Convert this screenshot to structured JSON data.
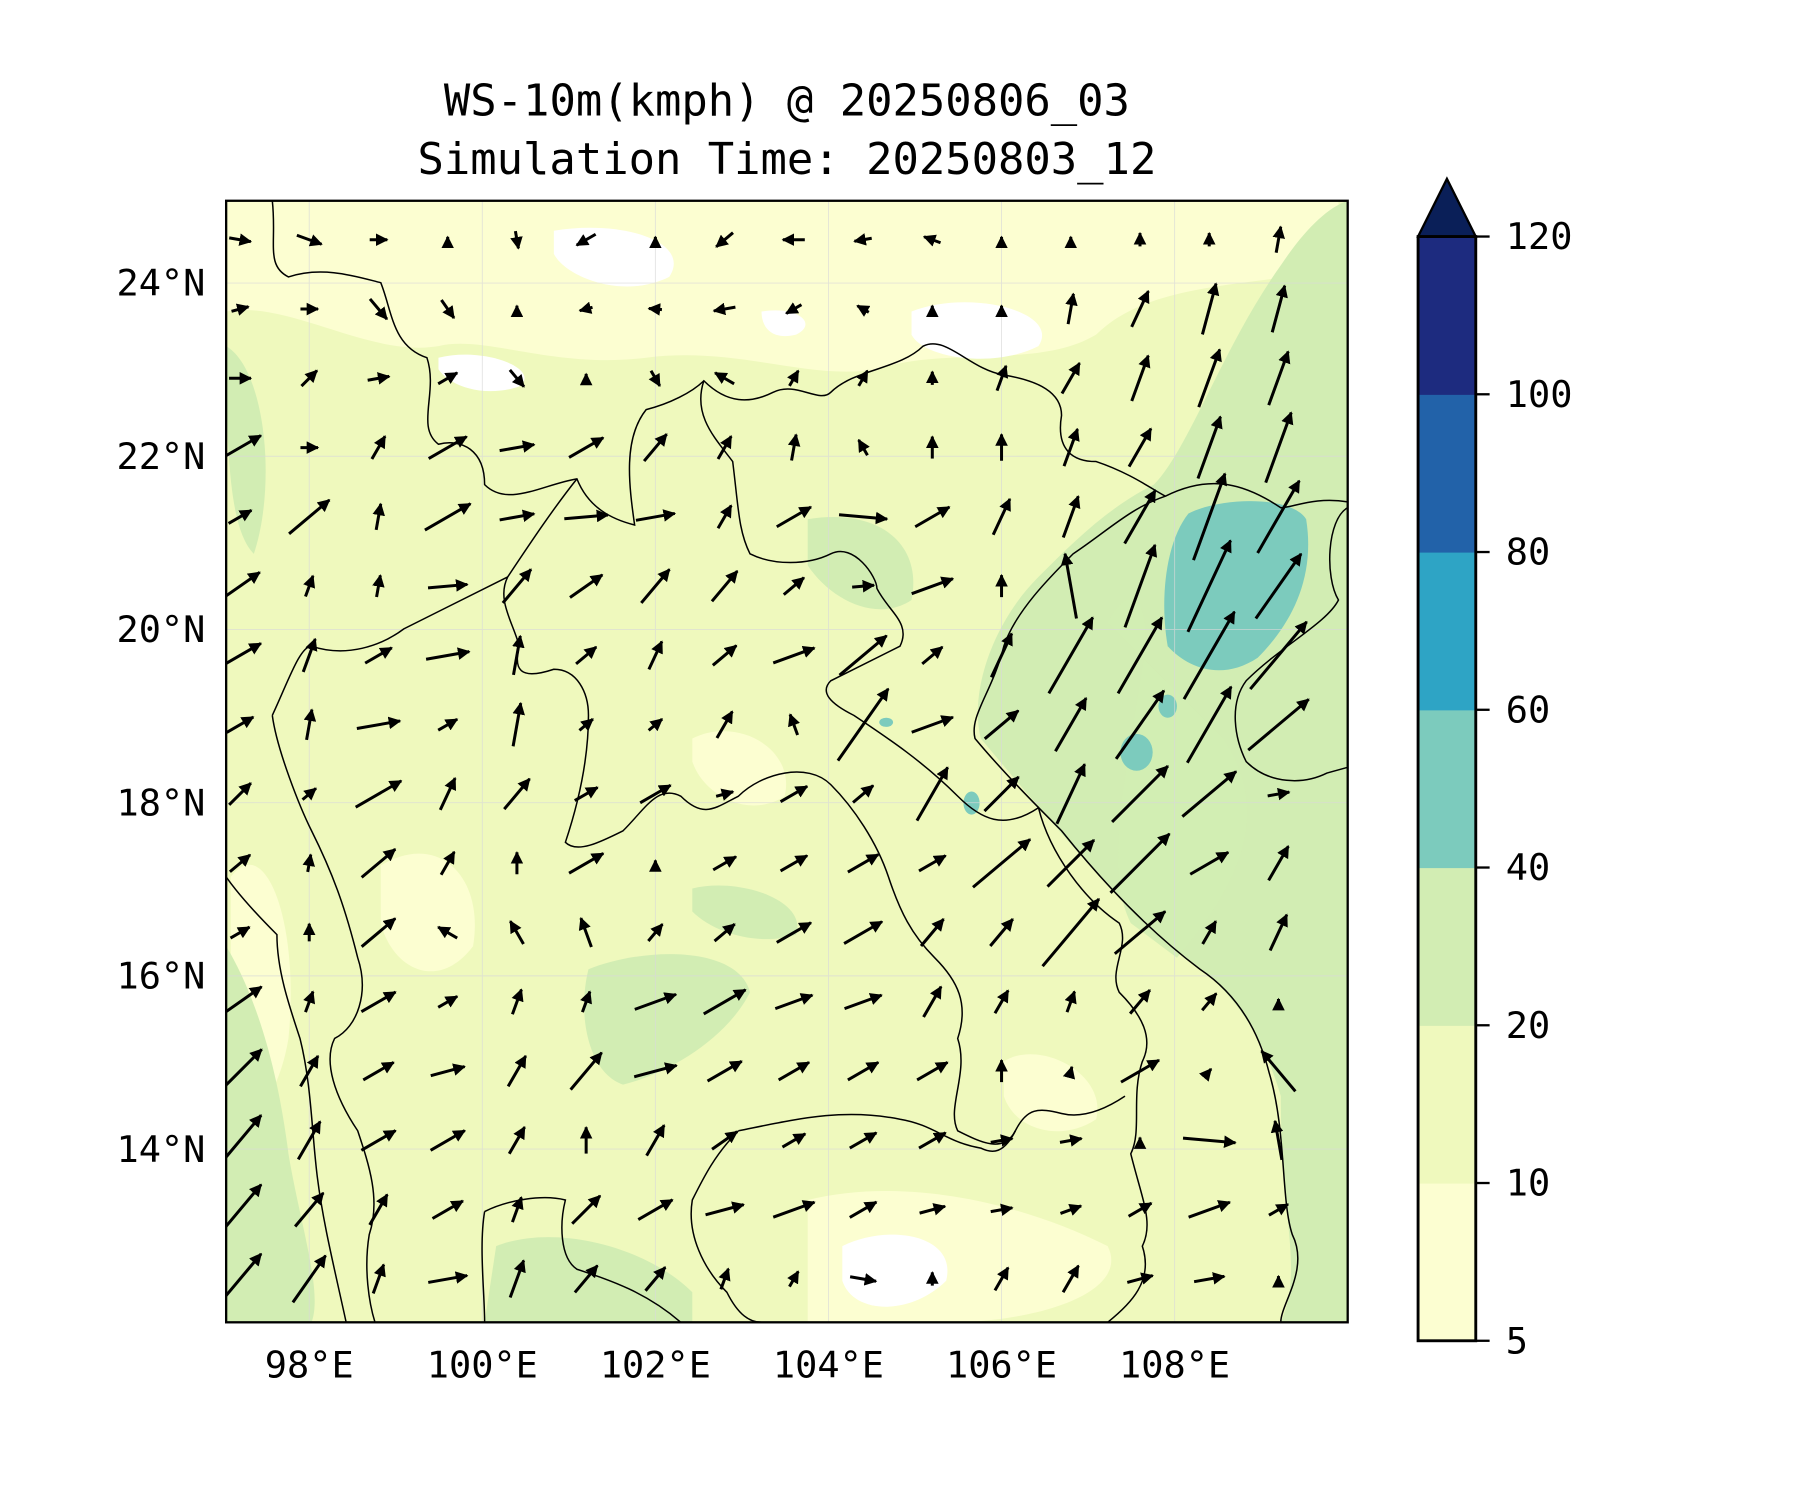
{
  "chart_data": {
    "type": "heatmap",
    "title_line1": "WS-10m(kmph) @ 20250806_03",
    "title_line2": "Simulation Time: 20250803_12",
    "variable": "10 m wind speed (kmph) with wind vectors",
    "xlim": [
      97.04,
      110.0
    ],
    "ylim": [
      12.0,
      24.95
    ],
    "x_ticks": [
      98,
      100,
      102,
      104,
      106,
      108
    ],
    "x_tick_labels": [
      "98°E",
      "100°E",
      "102°E",
      "104°E",
      "106°E",
      "108°E"
    ],
    "y_ticks": [
      14,
      16,
      18,
      20,
      22,
      24
    ],
    "y_tick_labels": [
      "14°N",
      "16°N",
      "18°N",
      "20°N",
      "22°N",
      "24°N"
    ],
    "grid": true,
    "colorbar": {
      "levels": [
        5,
        10,
        20,
        40,
        60,
        80,
        100,
        120
      ],
      "tick_labels": [
        "5",
        "10",
        "20",
        "40",
        "60",
        "80",
        "100",
        "120"
      ],
      "colors": [
        "#fcfed1",
        "#eff9bd",
        "#d2edb3",
        "#7ccbbd",
        "#2ea4c5",
        "#2262a9",
        "#1d2b7f"
      ],
      "extend_color": "#0a1f58",
      "extend": "max",
      "placement": "right"
    },
    "wind": {
      "lon_start": 97.2,
      "lon_step": 0.8,
      "lat_start": 24.5,
      "lat_step": -0.8,
      "note": "each cell [direction_toward_deg, speed_kmph]",
      "rows": [
        [
          [
            100,
            10
          ],
          [
            110,
            12
          ],
          [
            90,
            8
          ],
          [
            0,
            2
          ],
          [
            170,
            8
          ],
          [
            240,
            10
          ],
          [
            0,
            2
          ],
          [
            230,
            10
          ],
          [
            270,
            10
          ],
          [
            260,
            8
          ],
          [
            290,
            8
          ],
          [
            0,
            2
          ],
          [
            0,
            2
          ],
          [
            0,
            6
          ],
          [
            0,
            6
          ],
          [
            10,
            12
          ]
        ],
        [
          [
            75,
            8
          ],
          [
            90,
            8
          ],
          [
            140,
            12
          ],
          [
            145,
            10
          ],
          [
            0,
            3
          ],
          [
            255,
            6
          ],
          [
            275,
            6
          ],
          [
            260,
            10
          ],
          [
            240,
            8
          ],
          [
            300,
            6
          ],
          [
            0,
            3
          ],
          [
            0,
            3
          ],
          [
            10,
            14
          ],
          [
            25,
            18
          ],
          [
            15,
            24
          ],
          [
            15,
            22
          ]
        ],
        [
          [
            90,
            10
          ],
          [
            45,
            10
          ],
          [
            80,
            10
          ],
          [
            60,
            10
          ],
          [
            140,
            10
          ],
          [
            0,
            4
          ],
          [
            150,
            8
          ],
          [
            300,
            10
          ],
          [
            30,
            8
          ],
          [
            30,
            8
          ],
          [
            0,
            6
          ],
          [
            20,
            12
          ],
          [
            30,
            16
          ],
          [
            20,
            22
          ],
          [
            20,
            28
          ],
          [
            20,
            26
          ]
        ],
        [
          [
            60,
            22
          ],
          [
            90,
            8
          ],
          [
            30,
            12
          ],
          [
            60,
            20
          ],
          [
            80,
            16
          ],
          [
            60,
            18
          ],
          [
            40,
            16
          ],
          [
            30,
            12
          ],
          [
            10,
            12
          ],
          [
            330,
            8
          ],
          [
            0,
            10
          ],
          [
            0,
            12
          ],
          [
            20,
            18
          ],
          [
            30,
            20
          ],
          [
            20,
            30
          ],
          [
            20,
            34
          ]
        ],
        [
          [
            60,
            12
          ],
          [
            50,
            24
          ],
          [
            10,
            12
          ],
          [
            60,
            24
          ],
          [
            80,
            16
          ],
          [
            85,
            20
          ],
          [
            80,
            18
          ],
          [
            30,
            12
          ],
          [
            60,
            18
          ],
          [
            95,
            22
          ],
          [
            60,
            18
          ],
          [
            25,
            18
          ],
          [
            20,
            20
          ],
          [
            30,
            28
          ],
          [
            20,
            42
          ],
          [
            30,
            38
          ]
        ],
        [
          [
            55,
            22
          ],
          [
            20,
            10
          ],
          [
            10,
            10
          ],
          [
            85,
            18
          ],
          [
            40,
            20
          ],
          [
            55,
            18
          ],
          [
            40,
            20
          ],
          [
            40,
            18
          ],
          [
            50,
            12
          ],
          [
            85,
            10
          ],
          [
            70,
            20
          ],
          [
            0,
            10
          ],
          [
            350,
            30
          ],
          [
            20,
            40
          ],
          [
            25,
            46
          ],
          [
            35,
            36
          ]
        ],
        [
          [
            60,
            22
          ],
          [
            20,
            16
          ],
          [
            60,
            14
          ],
          [
            80,
            20
          ],
          [
            10,
            18
          ],
          [
            50,
            12
          ],
          [
            25,
            14
          ],
          [
            50,
            14
          ],
          [
            70,
            20
          ],
          [
            50,
            28
          ],
          [
            50,
            12
          ],
          [
            25,
            22
          ],
          [
            30,
            40
          ],
          [
            30,
            40
          ],
          [
            30,
            46
          ],
          [
            40,
            40
          ]
        ],
        [
          [
            60,
            14
          ],
          [
            10,
            14
          ],
          [
            80,
            20
          ],
          [
            60,
            10
          ],
          [
            10,
            20
          ],
          [
            50,
            8
          ],
          [
            50,
            8
          ],
          [
            30,
            14
          ],
          [
            340,
            10
          ],
          [
            35,
            40
          ],
          [
            70,
            20
          ],
          [
            50,
            20
          ],
          [
            30,
            28
          ],
          [
            35,
            38
          ],
          [
            30,
            40
          ],
          [
            50,
            36
          ]
        ],
        [
          [
            45,
            14
          ],
          [
            50,
            8
          ],
          [
            60,
            24
          ],
          [
            25,
            16
          ],
          [
            40,
            18
          ],
          [
            60,
            12
          ],
          [
            60,
            16
          ],
          [
            75,
            8
          ],
          [
            60,
            14
          ],
          [
            50,
            12
          ],
          [
            30,
            28
          ],
          [
            45,
            22
          ],
          [
            25,
            30
          ],
          [
            45,
            36
          ],
          [
            50,
            32
          ],
          [
            80,
            10
          ]
        ],
        [
          [
            50,
            12
          ],
          [
            10,
            8
          ],
          [
            50,
            20
          ],
          [
            30,
            12
          ],
          [
            0,
            10
          ],
          [
            60,
            18
          ],
          [
            0,
            2
          ],
          [
            60,
            12
          ],
          [
            60,
            14
          ],
          [
            60,
            16
          ],
          [
            60,
            14
          ],
          [
            50,
            34
          ],
          [
            45,
            30
          ],
          [
            45,
            38
          ],
          [
            60,
            20
          ],
          [
            30,
            18
          ]
        ],
        [
          [
            60,
            10
          ],
          [
            0,
            8
          ],
          [
            50,
            20
          ],
          [
            300,
            10
          ],
          [
            330,
            12
          ],
          [
            340,
            14
          ],
          [
            40,
            10
          ],
          [
            50,
            12
          ],
          [
            60,
            18
          ],
          [
            60,
            20
          ],
          [
            40,
            16
          ],
          [
            40,
            16
          ],
          [
            40,
            40
          ],
          [
            50,
            30
          ],
          [
            30,
            12
          ],
          [
            25,
            18
          ]
        ],
        [
          [
            55,
            24
          ],
          [
            20,
            10
          ],
          [
            60,
            18
          ],
          [
            60,
            10
          ],
          [
            20,
            12
          ],
          [
            20,
            10
          ],
          [
            70,
            20
          ],
          [
            60,
            22
          ],
          [
            70,
            18
          ],
          [
            70,
            18
          ],
          [
            30,
            16
          ],
          [
            30,
            12
          ],
          [
            20,
            10
          ],
          [
            40,
            14
          ],
          [
            40,
            10
          ],
          [
            0,
            2
          ]
        ],
        [
          [
            45,
            28
          ],
          [
            30,
            16
          ],
          [
            60,
            16
          ],
          [
            75,
            16
          ],
          [
            30,
            16
          ],
          [
            40,
            22
          ],
          [
            75,
            20
          ],
          [
            60,
            18
          ],
          [
            60,
            16
          ],
          [
            60,
            16
          ],
          [
            60,
            16
          ],
          [
            0,
            10
          ],
          [
            15,
            4
          ],
          [
            60,
            20
          ],
          [
            40,
            2
          ],
          [
            320,
            24
          ]
        ],
        [
          [
            40,
            30
          ],
          [
            30,
            20
          ],
          [
            60,
            18
          ],
          [
            60,
            18
          ],
          [
            30,
            14
          ],
          [
            0,
            12
          ],
          [
            30,
            16
          ],
          [
            55,
            14
          ],
          [
            60,
            12
          ],
          [
            60,
            14
          ],
          [
            60,
            14
          ],
          [
            80,
            10
          ],
          [
            80,
            10
          ],
          [
            0,
            2
          ],
          [
            95,
            24
          ],
          [
            350,
            18
          ]
        ],
        [
          [
            40,
            30
          ],
          [
            40,
            20
          ],
          [
            30,
            16
          ],
          [
            60,
            16
          ],
          [
            20,
            12
          ],
          [
            45,
            18
          ],
          [
            60,
            18
          ],
          [
            75,
            18
          ],
          [
            70,
            20
          ],
          [
            60,
            14
          ],
          [
            75,
            12
          ],
          [
            80,
            10
          ],
          [
            70,
            10
          ],
          [
            60,
            12
          ],
          [
            70,
            20
          ],
          [
            60,
            10
          ]
        ],
        [
          [
            40,
            30
          ],
          [
            35,
            26
          ],
          [
            20,
            14
          ],
          [
            80,
            18
          ],
          [
            20,
            18
          ],
          [
            40,
            16
          ],
          [
            40,
            14
          ],
          [
            20,
            10
          ],
          [
            30,
            8
          ],
          [
            100,
            12
          ],
          [
            0,
            6
          ],
          [
            30,
            12
          ],
          [
            30,
            14
          ],
          [
            75,
            12
          ],
          [
            80,
            14
          ],
          [
            0,
            2
          ]
        ]
      ]
    }
  }
}
